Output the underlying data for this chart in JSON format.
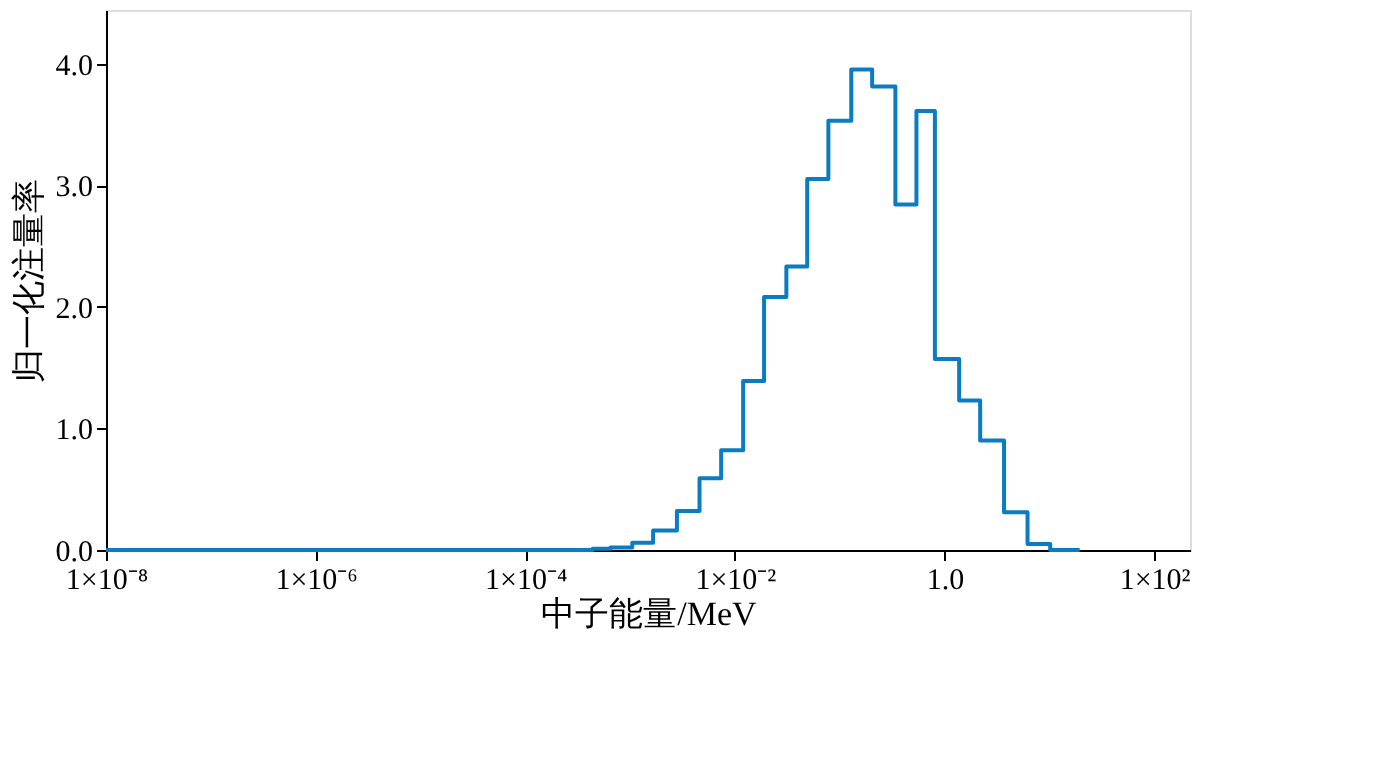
{
  "chart_data": {
    "type": "histogram",
    "xlabel": "中子能量/MeV",
    "ylabel": "归一化注量率",
    "log": "x",
    "color": "#0a7cc1",
    "grid": false,
    "bins": [
      1e-08,
      0.00044,
      0.00065,
      0.00105,
      0.00166,
      0.0028,
      0.0046,
      0.0074,
      0.012,
      0.019,
      0.031,
      0.049,
      0.078,
      0.129,
      0.204,
      0.34,
      0.54,
      0.81,
      1.38,
      2.19,
      3.7,
      6.2,
      10.2,
      19.5
    ],
    "values": [
      0,
      0.01,
      0.02,
      0.06,
      0.16,
      0.32,
      0.59,
      0.82,
      1.39,
      2.08,
      2.33,
      3.05,
      3.53,
      3.95,
      3.81,
      2.84,
      3.61,
      1.57,
      1.23,
      0.9,
      0.31,
      0.05,
      0
    ],
    "xlim": [
      1e-08,
      220
    ],
    "xticks": [
      {
        "value": 1e-08,
        "label": "1×10⁻⁸"
      },
      {
        "value": 1e-06,
        "label": "1×10⁻⁶"
      },
      {
        "value": 0.0001,
        "label": "1×10⁻⁴"
      },
      {
        "value": 0.01,
        "label": "1×10⁻²"
      },
      {
        "value": 1,
        "label": "1.0"
      },
      {
        "value": 100,
        "label": "1×10²"
      }
    ],
    "ylim": [
      0,
      4.44
    ],
    "yticks": [
      {
        "value": 0,
        "label": "0.0"
      },
      {
        "value": 1,
        "label": "1.0"
      },
      {
        "value": 2,
        "label": "2.0"
      },
      {
        "value": 3,
        "label": "3.0"
      },
      {
        "value": 4,
        "label": "4.0"
      }
    ]
  }
}
